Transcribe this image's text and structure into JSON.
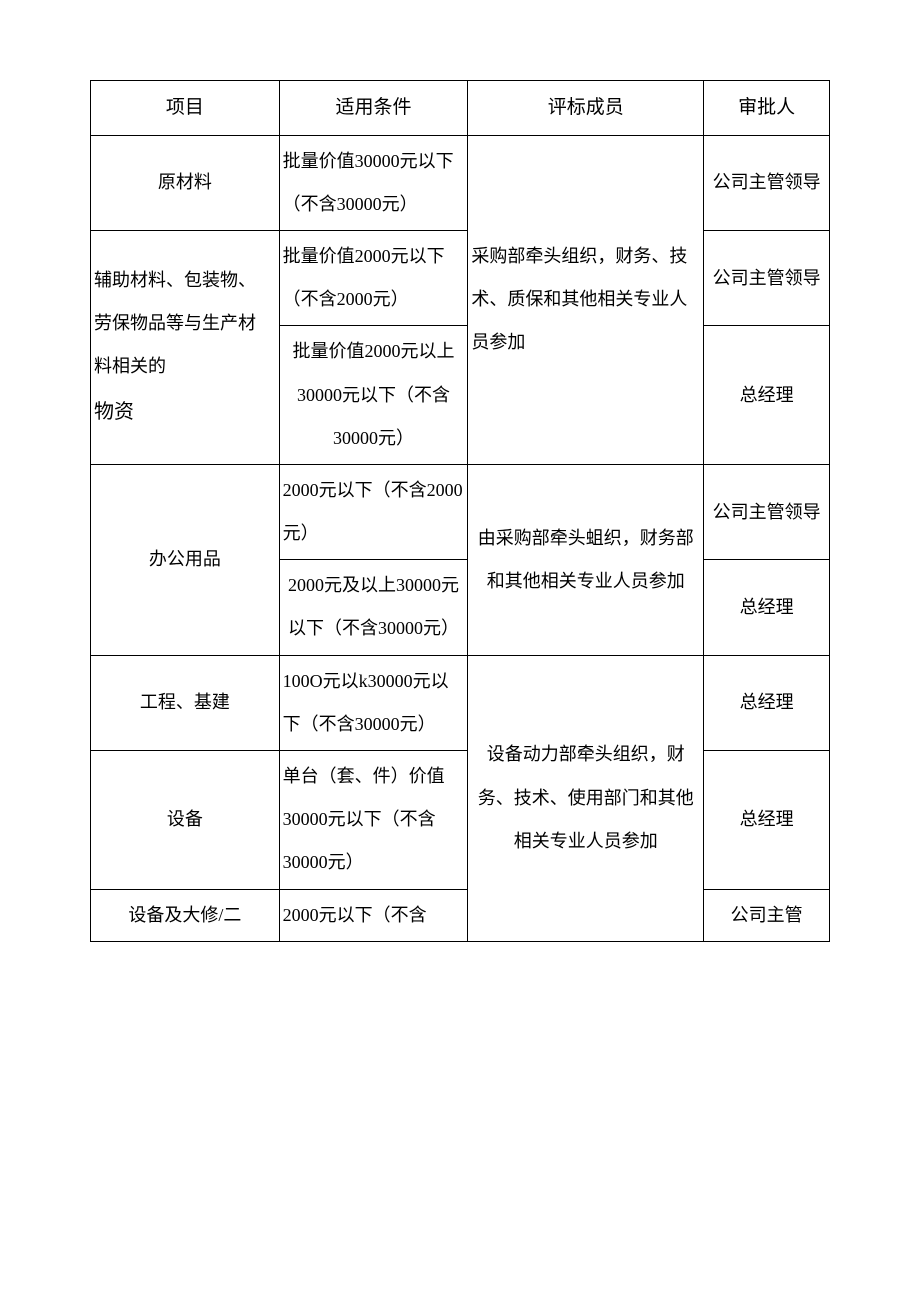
{
  "header": {
    "col1": "项目",
    "col2": "适用条件",
    "col3": "评标成员",
    "col4": "审批人"
  },
  "rows": {
    "r1": {
      "project": "原材料",
      "condition": "批量价值30000元以下（不含30000元）",
      "members": "采购部牵头组织，财务、技术、质保和其他相关专业人员参加",
      "approver": "公司主管领导"
    },
    "r2": {
      "project_line1": "辅助材料、包装物、",
      "project_line2": "劳保物品等与生产材",
      "project_line3": "料相关的",
      "project_line4": "物资",
      "condition_a": "批量价值2000元以下（不含2000元）",
      "condition_b": "批量价值2000元以上30000元以下（不含30000元）",
      "approver_a": "公司主管领导",
      "approver_b": "总经理"
    },
    "r3": {
      "project": "办公用品",
      "condition_a": "2000元以下（不含2000元）",
      "condition_b": "2000元及以上30000元以下（不含30000元）",
      "members": "由采购部牵头蛆织，财务部和其他相关专业人员参加",
      "approver_a": "公司主管领导",
      "approver_b": "总经理"
    },
    "r4": {
      "project": "工程、基建",
      "condition": "100O元以k30000元以下（不含30000元）",
      "members": "设备动力部牵头组织，财务、技术、使用部门和其他相关专业人员参加",
      "approver": "总经理"
    },
    "r5": {
      "project": "设备",
      "condition": "单台（套、件）价值30000元以下（不含30000元）",
      "approver": "总经理"
    },
    "r6": {
      "project": "设备及大修/二",
      "condition": "2000元以下（不含",
      "approver": "公司主管"
    }
  },
  "styles": {
    "background_color": "#ffffff",
    "text_color": "#000000",
    "border_color": "#000000",
    "font_family": "SimSun",
    "base_fontsize": 18,
    "header_fontsize": 19,
    "line_height": 2.4,
    "col_widths_pct": [
      24,
      24,
      30,
      16
    ]
  }
}
